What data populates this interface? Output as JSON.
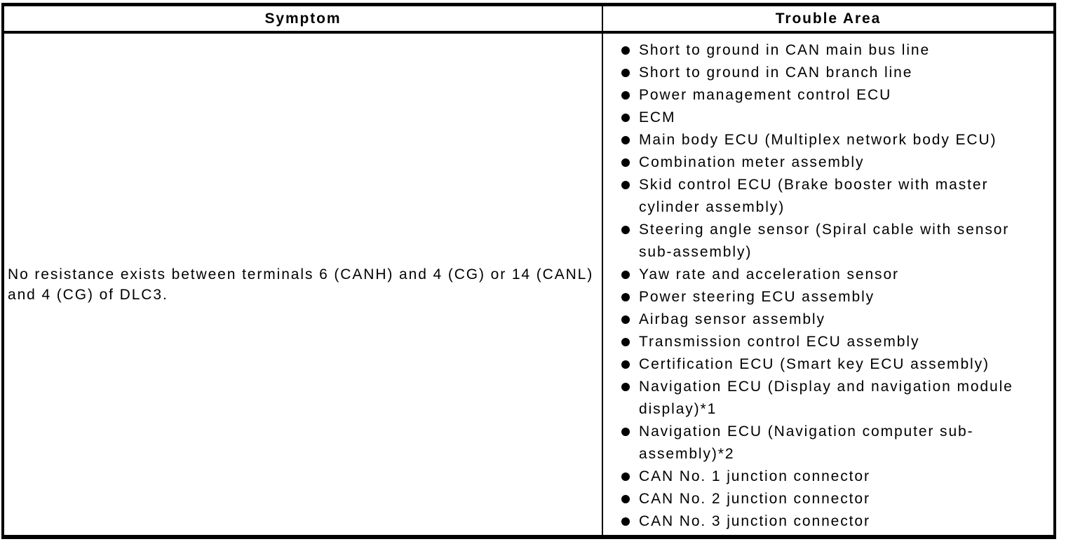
{
  "page": {
    "background_color": "#ffffff",
    "text_color": "#000000",
    "border_color": "#000000"
  },
  "table": {
    "headers": [
      {
        "id": "symptom",
        "label": "Symptom"
      },
      {
        "id": "trouble_area",
        "label": "Trouble Area"
      }
    ],
    "rows": [
      {
        "symptom": "No resistance exists between terminals 6 (CANH) and 4 (CG) or 14 (CANL) and 4 (CG) of DLC3.",
        "trouble_areas": [
          "Short to ground in CAN main bus line",
          "Short to ground in CAN branch line",
          "Power management control ECU",
          "ECM",
          "Main body ECU (Multiplex network body ECU)",
          "Combination meter assembly",
          "Skid control ECU (Brake booster with master cylinder assembly)",
          "Steering angle sensor (Spiral cable with sensor sub-assembly)",
          "Yaw rate and acceleration sensor",
          "Power steering ECU assembly",
          "Airbag sensor assembly",
          "Transmission control ECU assembly",
          "Certification ECU (Smart key ECU assembly)",
          "Navigation ECU (Display and navigation module display)*1",
          "Navigation ECU (Navigation computer sub-assembly)*2",
          "CAN No. 1 junction connector",
          "CAN No. 2 junction connector",
          "CAN No. 3 junction connector"
        ]
      }
    ]
  }
}
